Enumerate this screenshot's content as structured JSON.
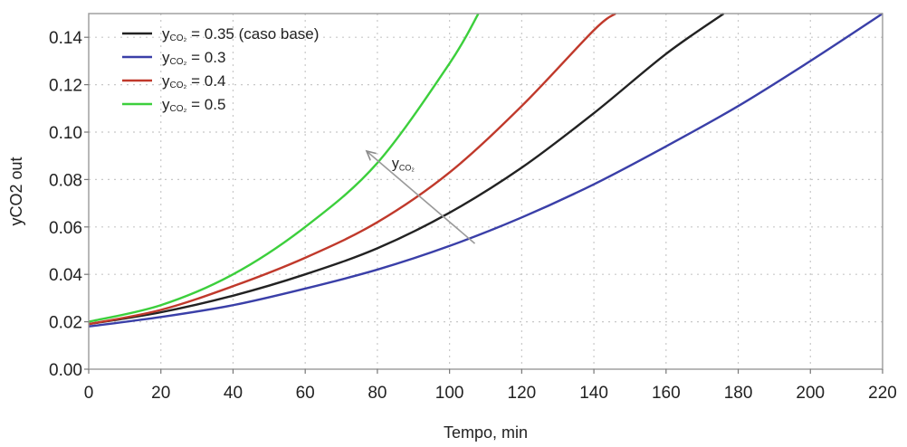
{
  "chart_data": {
    "type": "line",
    "xlabel": "Tempo, min",
    "ylabel": "yCO2 out",
    "xlim": [
      0,
      220
    ],
    "ylim": [
      0.0,
      0.15
    ],
    "xticks": [
      0,
      20,
      40,
      60,
      80,
      100,
      120,
      140,
      160,
      180,
      200,
      220
    ],
    "yticks": [
      0.0,
      0.02,
      0.04,
      0.06,
      0.08,
      0.1,
      0.12,
      0.14
    ],
    "xtick_labels": [
      "0",
      "20",
      "40",
      "60",
      "80",
      "100",
      "120",
      "140",
      "160",
      "180",
      "200",
      "220"
    ],
    "ytick_labels": [
      "0.00",
      "0.02",
      "0.04",
      "0.06",
      "0.08",
      "0.10",
      "0.12",
      "0.14"
    ],
    "grid": true,
    "legend_position": "top-left",
    "series": [
      {
        "legend_main": "y",
        "legend_sub": "CO₂",
        "legend_rest": " = 0.35 (caso base)",
        "color": "#222222",
        "x": [
          0,
          20,
          40,
          60,
          80,
          100,
          120,
          140,
          160,
          176
        ],
        "y": [
          0.019,
          0.024,
          0.031,
          0.04,
          0.051,
          0.066,
          0.085,
          0.108,
          0.133,
          0.15
        ]
      },
      {
        "legend_main": "y",
        "legend_sub": "CO₂",
        "legend_rest": " = 0.3",
        "color": "#3a3fa8",
        "x": [
          0,
          20,
          40,
          60,
          80,
          100,
          120,
          140,
          160,
          180,
          200,
          220
        ],
        "y": [
          0.018,
          0.022,
          0.027,
          0.034,
          0.042,
          0.052,
          0.064,
          0.078,
          0.094,
          0.111,
          0.13,
          0.15
        ]
      },
      {
        "legend_main": "y",
        "legend_sub": "CO₂",
        "legend_rest": " = 0.4",
        "color": "#c0392b",
        "x": [
          0,
          20,
          40,
          60,
          80,
          100,
          120,
          140,
          146
        ],
        "y": [
          0.019,
          0.025,
          0.035,
          0.047,
          0.062,
          0.083,
          0.111,
          0.143,
          0.15
        ]
      },
      {
        "legend_main": "y",
        "legend_sub": "CO₂",
        "legend_rest": " = 0.5",
        "color": "#3ccf3c",
        "x": [
          0,
          20,
          40,
          60,
          80,
          100,
          108
        ],
        "y": [
          0.02,
          0.027,
          0.04,
          0.06,
          0.087,
          0.129,
          0.15
        ]
      }
    ],
    "annotation": {
      "label_main": "y",
      "label_sub": "CO₂",
      "arrow_from": [
        107,
        0.053
      ],
      "arrow_to": [
        77,
        0.092
      ],
      "label_at": [
        84,
        0.085
      ],
      "color": "#9a9a9a"
    }
  }
}
